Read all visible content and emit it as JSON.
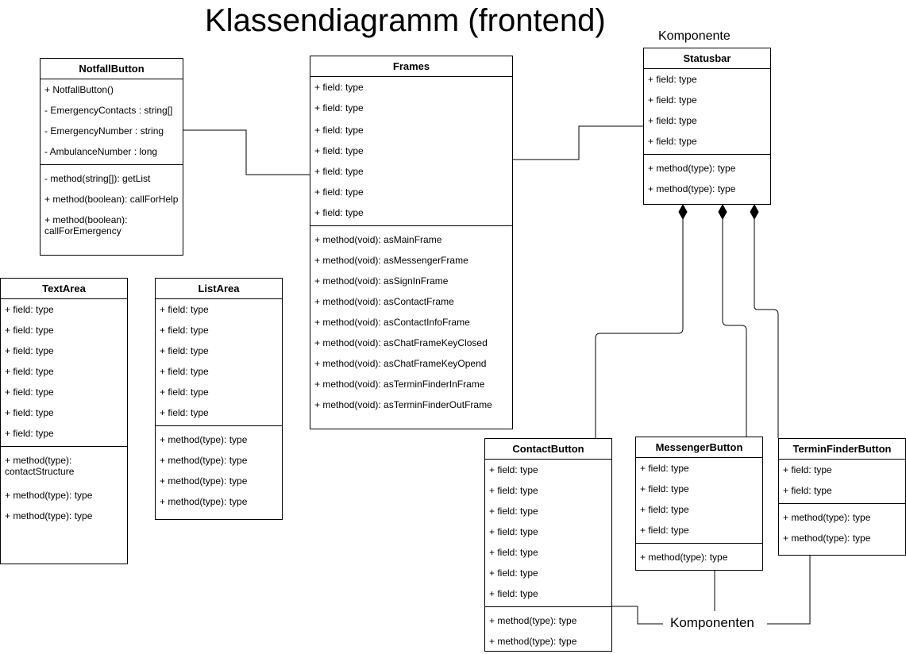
{
  "title": "Klassendiagramm (frontend)",
  "labels": {
    "komponente": "Komponente",
    "komponenten": "Komponenten"
  },
  "classes": {
    "notfall": {
      "name": "NotfallButton",
      "attrs": [
        "+ NotfallButton()",
        "- EmergencyContacts : string[]",
        "- EmergencyNumber : string",
        "- AmbulanceNumber : long"
      ],
      "methods": [
        "- method(string[]): getList",
        "+ method(boolean): callForHelp",
        "+ method(boolean): callForEmergency"
      ]
    },
    "frames": {
      "name": "Frames",
      "attrs": [
        "+ field: type",
        "+ field: type",
        "+ field: type",
        "+ field: type",
        "+ field: type",
        "+ field: type",
        "+ field: type"
      ],
      "methods": [
        "+ method(void): asMainFrame",
        "+ method(void): asMessengerFrame",
        "+ method(void): asSignInFrame",
        "+ method(void): asContactFrame",
        "+ method(void): asContactInfoFrame",
        "+ method(void): asChatFrameKeyClosed",
        "+ method(void): asChatFrameKeyOpend",
        "+ method(void): asTerminFinderInFrame",
        "+ method(void): asTerminFinderOutFrame"
      ]
    },
    "statusbar": {
      "name": "Statusbar",
      "attrs": [
        "+ field: type",
        "+ field: type",
        "+ field: type",
        "+ field: type"
      ],
      "methods": [
        "+ method(type): type",
        "+ method(type): type"
      ]
    },
    "textarea": {
      "name": "TextArea",
      "attrs": [
        "+ field: type",
        "+ field: type",
        "+ field: type",
        "+ field: type",
        "+ field: type",
        "+ field: type",
        "+ field: type"
      ],
      "methods": [
        "+ method(type): contactStructure",
        "+ method(type): type",
        "+ method(type): type"
      ]
    },
    "listarea": {
      "name": "ListArea",
      "attrs": [
        "+ field: type",
        "+ field: type",
        "+ field: type",
        "+ field: type",
        "+ field: type",
        "+ field: type"
      ],
      "methods": [
        "+ method(type): type",
        "+ method(type): type",
        "+ method(type): type",
        "+ method(type): type"
      ]
    },
    "contact": {
      "name": "ContactButton",
      "attrs": [
        "+ field: type",
        "+ field: type",
        "+ field: type",
        "+ field: type",
        "+ field: type",
        "+ field: type",
        "+ field: type"
      ],
      "methods": [
        "+ method(type): type",
        "+ method(type): type"
      ]
    },
    "messenger": {
      "name": "MessengerButton",
      "attrs": [
        "+ field: type",
        "+ field: type",
        "+ field: type",
        "+ field: type"
      ],
      "methods": [
        "+ method(type): type"
      ]
    },
    "termin": {
      "name": "TerminFinderButton",
      "attrs": [
        "+ field: type",
        "+ field: type"
      ],
      "methods": [
        "+ method(type): type",
        "+ method(type): type"
      ]
    }
  }
}
